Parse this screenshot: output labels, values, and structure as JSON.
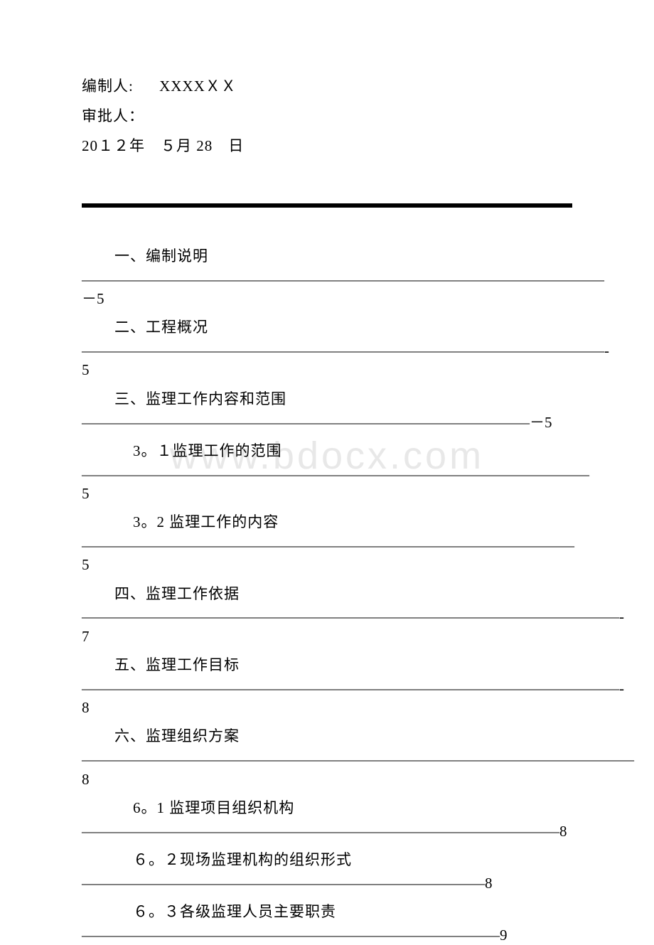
{
  "header": {
    "author_label": "编制人:",
    "author_value": "XXXXＸＸ",
    "approver_label": "审批人：",
    "approver_value": "",
    "date_text": "20１２年　５月 28　日"
  },
  "watermark": "www.bdocx.com",
  "toc": [
    {
      "title": "一、编制说明",
      "leader": "———————————————————————————————————－5",
      "sub": false
    },
    {
      "title": "二、工程概况",
      "leader": "———————————————————————————————————-5",
      "sub": false
    },
    {
      "title": "三、监理工作内容和范围",
      "leader": "——————————————————————————————－5",
      "sub": false
    },
    {
      "title": "3。１监理工作的范围",
      "leader": "——————————————————————————————————5",
      "sub": true
    },
    {
      "title": "3。2 监理工作的内容",
      "leader": "————————————————————————————————— 5",
      "sub": true
    },
    {
      "title": "四、监理工作依据",
      "leader": "————————————————————————————————————-7",
      "sub": false
    },
    {
      "title": "五、监理工作目标",
      "leader": "————————————————————————————————————- 8",
      "sub": false
    },
    {
      "title": "六、监理组织方案",
      "leader": "—————————————————————————————————————8",
      "sub": false
    },
    {
      "title": "6。1 监理项目组织机构",
      "leader": "————————————————————————————————8",
      "sub": true
    },
    {
      "title": "６。２现场监理机构的组织形式",
      "leader": "———————————————————————————8",
      "sub": true
    },
    {
      "title": "６。３各级监理人员主要职责",
      "leader": "————————————————————————————9",
      "sub": true
    }
  ]
}
